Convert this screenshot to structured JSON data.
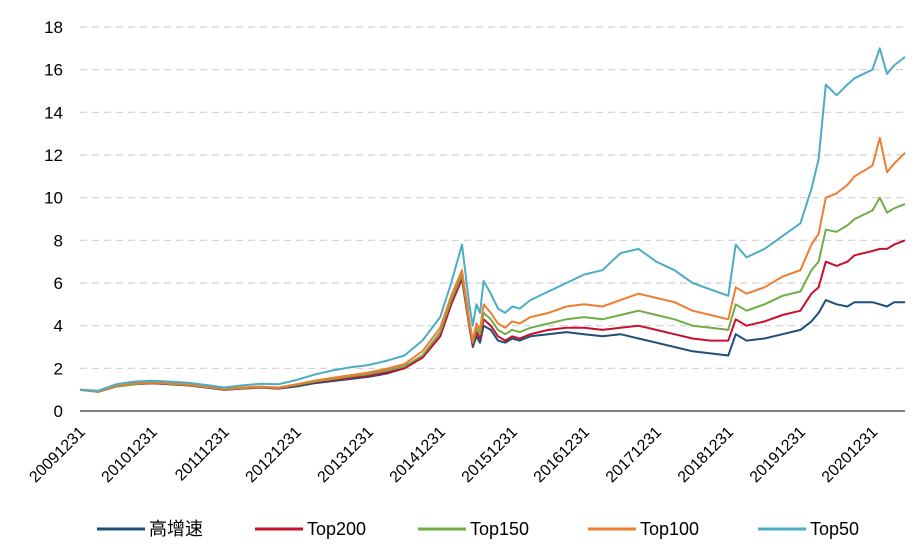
{
  "chart_data": {
    "type": "line",
    "title": "",
    "xlabel": "",
    "ylabel": "",
    "ylim": [
      0,
      18
    ],
    "y_ticks": [
      "0",
      "2",
      "4",
      "6",
      "8",
      "10",
      "12",
      "14",
      "16",
      "18"
    ],
    "grid": "horizontal dashed",
    "legend_position": "bottom",
    "x_tick_labels": [
      "20091231",
      "20101231",
      "20111231",
      "20121231",
      "20131231",
      "20141231",
      "20151231",
      "20161231",
      "20171231",
      "20181231",
      "20191231",
      "20201231"
    ],
    "x_tick_years": [
      2009.9973,
      2010.9973,
      2011.9973,
      2012.9973,
      2013.9973,
      2014.9973,
      2015.9973,
      2016.9973,
      2017.9973,
      2018.9973,
      2019.9973,
      2020.9973
    ],
    "xlim": [
      2009.9973,
      2021.45
    ],
    "x_unit": "decimal year",
    "x": [
      2009.9973,
      2010.25,
      2010.5,
      2010.75,
      2010.9973,
      2011.25,
      2011.5,
      2011.75,
      2011.9973,
      2012.25,
      2012.5,
      2012.75,
      2012.9973,
      2013.25,
      2013.5,
      2013.75,
      2013.9973,
      2014.25,
      2014.5,
      2014.75,
      2014.9973,
      2015.15,
      2015.3,
      2015.4,
      2015.45,
      2015.5,
      2015.55,
      2015.6,
      2015.7,
      2015.8,
      2015.9,
      2015.9973,
      2016.1,
      2016.25,
      2016.5,
      2016.75,
      2016.9973,
      2017.25,
      2017.5,
      2017.75,
      2017.9973,
      2018.25,
      2018.5,
      2018.75,
      2018.9973,
      2019.1,
      2019.25,
      2019.5,
      2019.75,
      2019.9973,
      2020.15,
      2020.25,
      2020.35,
      2020.5,
      2020.65,
      2020.75,
      2020.9973,
      2021.1,
      2021.2,
      2021.3,
      2021.45
    ],
    "series": [
      {
        "name": "高增速",
        "color": "#1f4e79",
        "values": [
          1.0,
          0.9,
          1.15,
          1.25,
          1.3,
          1.25,
          1.2,
          1.1,
          1.0,
          1.05,
          1.1,
          1.05,
          1.15,
          1.3,
          1.4,
          1.5,
          1.6,
          1.75,
          2.0,
          2.5,
          3.5,
          5.0,
          6.2,
          4.0,
          3.0,
          3.5,
          3.2,
          4.0,
          3.8,
          3.3,
          3.2,
          3.4,
          3.3,
          3.5,
          3.6,
          3.7,
          3.6,
          3.5,
          3.6,
          3.4,
          3.2,
          3.0,
          2.8,
          2.7,
          2.6,
          3.6,
          3.3,
          3.4,
          3.6,
          3.8,
          4.2,
          4.6,
          5.2,
          5.0,
          4.9,
          5.1,
          5.1,
          5.0,
          4.9,
          5.1,
          5.1
        ]
      },
      {
        "name": "Top200",
        "color": "#c8102e",
        "values": [
          1.0,
          0.9,
          1.15,
          1.25,
          1.3,
          1.25,
          1.2,
          1.1,
          1.0,
          1.05,
          1.1,
          1.05,
          1.2,
          1.35,
          1.45,
          1.55,
          1.65,
          1.8,
          2.0,
          2.5,
          3.5,
          5.0,
          6.2,
          4.0,
          3.1,
          3.7,
          3.4,
          4.3,
          4.0,
          3.5,
          3.3,
          3.5,
          3.4,
          3.6,
          3.8,
          3.9,
          3.9,
          3.8,
          3.9,
          4.0,
          3.8,
          3.6,
          3.4,
          3.3,
          3.3,
          4.3,
          4.0,
          4.2,
          4.5,
          4.7,
          5.5,
          5.8,
          7.0,
          6.8,
          7.0,
          7.3,
          7.5,
          7.6,
          7.6,
          7.8,
          8.0
        ]
      },
      {
        "name": "Top150",
        "color": "#70ad47",
        "values": [
          1.0,
          0.9,
          1.15,
          1.25,
          1.32,
          1.27,
          1.22,
          1.12,
          1.02,
          1.07,
          1.12,
          1.08,
          1.22,
          1.38,
          1.5,
          1.62,
          1.72,
          1.9,
          2.1,
          2.6,
          3.7,
          5.2,
          6.4,
          4.1,
          3.2,
          3.9,
          3.6,
          4.6,
          4.3,
          3.8,
          3.6,
          3.8,
          3.7,
          3.9,
          4.1,
          4.3,
          4.4,
          4.3,
          4.5,
          4.7,
          4.5,
          4.3,
          4.0,
          3.9,
          3.8,
          5.0,
          4.7,
          5.0,
          5.4,
          5.6,
          6.6,
          7.0,
          8.5,
          8.4,
          8.7,
          9.0,
          9.4,
          10.0,
          9.3,
          9.5,
          9.7
        ]
      },
      {
        "name": "Top100",
        "color": "#ed7d31",
        "values": [
          1.0,
          0.92,
          1.18,
          1.3,
          1.35,
          1.3,
          1.25,
          1.15,
          1.05,
          1.1,
          1.15,
          1.1,
          1.25,
          1.42,
          1.55,
          1.68,
          1.8,
          1.98,
          2.2,
          2.8,
          3.9,
          5.4,
          6.6,
          4.3,
          3.3,
          4.1,
          3.8,
          5.0,
          4.6,
          4.1,
          3.9,
          4.2,
          4.1,
          4.4,
          4.6,
          4.9,
          5.0,
          4.9,
          5.2,
          5.5,
          5.3,
          5.1,
          4.7,
          4.5,
          4.3,
          5.8,
          5.5,
          5.8,
          6.3,
          6.6,
          7.8,
          8.3,
          10.0,
          10.2,
          10.6,
          11.0,
          11.5,
          12.8,
          11.2,
          11.6,
          12.1
        ]
      },
      {
        "name": "Top50",
        "color": "#4bacc6",
        "values": [
          1.0,
          0.95,
          1.25,
          1.38,
          1.42,
          1.38,
          1.32,
          1.22,
          1.1,
          1.2,
          1.28,
          1.25,
          1.45,
          1.7,
          1.9,
          2.05,
          2.15,
          2.35,
          2.6,
          3.3,
          4.4,
          6.0,
          7.8,
          5.0,
          4.0,
          5.0,
          4.6,
          6.1,
          5.5,
          4.8,
          4.6,
          4.9,
          4.8,
          5.2,
          5.6,
          6.0,
          6.4,
          6.6,
          7.4,
          7.6,
          7.0,
          6.6,
          6.0,
          5.7,
          5.4,
          7.8,
          7.2,
          7.6,
          8.2,
          8.8,
          10.4,
          11.8,
          15.3,
          14.8,
          15.3,
          15.6,
          16.0,
          17.0,
          15.8,
          16.2,
          16.6
        ]
      }
    ]
  }
}
